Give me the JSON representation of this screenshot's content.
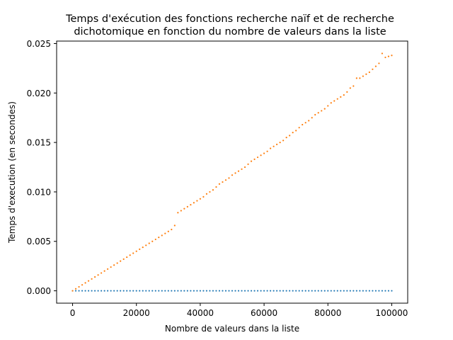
{
  "chart_data": {
    "type": "scatter",
    "title_line1": "Temps d'exécution des fonctions recherche naïf et de recherche",
    "title_line2": "dichotomique en fonction du nombre de valeurs dans la liste",
    "xlabel": "Nombre de valeurs dans la liste",
    "ylabel": "Temps d'execution (en secondes)",
    "xlim": [
      -5000,
      105000
    ],
    "ylim": [
      -0.00125,
      0.02525
    ],
    "x_ticks": [
      0,
      20000,
      40000,
      60000,
      80000,
      100000
    ],
    "x_tick_labels": [
      "0",
      "20000",
      "40000",
      "60000",
      "80000",
      "100000"
    ],
    "y_ticks": [
      0.0,
      0.005,
      0.01,
      0.015,
      0.02,
      0.025
    ],
    "y_tick_labels": [
      "0.000",
      "0.005",
      "0.010",
      "0.015",
      "0.020",
      "0.025"
    ],
    "grid": false,
    "legend": "none",
    "series": [
      {
        "color": "#1f77b4",
        "x": [
          0,
          1000,
          2000,
          3000,
          4000,
          5000,
          6000,
          7000,
          8000,
          9000,
          10000,
          11000,
          12000,
          13000,
          14000,
          15000,
          16000,
          17000,
          18000,
          19000,
          20000,
          21000,
          22000,
          23000,
          24000,
          25000,
          26000,
          27000,
          28000,
          29000,
          30000,
          31000,
          32000,
          33000,
          34000,
          35000,
          36000,
          37000,
          38000,
          39000,
          40000,
          41000,
          42000,
          43000,
          44000,
          45000,
          46000,
          47000,
          48000,
          49000,
          50000,
          51000,
          52000,
          53000,
          54000,
          55000,
          56000,
          57000,
          58000,
          59000,
          60000,
          61000,
          62000,
          63000,
          64000,
          65000,
          66000,
          67000,
          68000,
          69000,
          70000,
          71000,
          72000,
          73000,
          74000,
          75000,
          76000,
          77000,
          78000,
          79000,
          80000,
          81000,
          82000,
          83000,
          84000,
          85000,
          86000,
          87000,
          88000,
          89000,
          90000,
          91000,
          92000,
          93000,
          94000,
          95000,
          96000,
          97000,
          98000,
          99000,
          100000
        ],
        "y": [
          0.0,
          0.0,
          0.0,
          0.0,
          0.0,
          0.0,
          0.0,
          0.0,
          0.0,
          0.0,
          0.0,
          0.0,
          0.0,
          0.0,
          0.0,
          0.0,
          0.0,
          0.0,
          0.0,
          0.0,
          0.0,
          0.0,
          0.0,
          0.0,
          0.0,
          0.0,
          0.0,
          0.0,
          0.0,
          0.0,
          0.0,
          0.0,
          0.0,
          0.0,
          0.0,
          0.0,
          0.0,
          0.0,
          0.0,
          0.0,
          0.0,
          0.0,
          0.0,
          0.0,
          0.0,
          0.0,
          0.0,
          0.0,
          0.0,
          0.0,
          0.0,
          0.0,
          0.0,
          0.0,
          0.0,
          0.0,
          0.0,
          0.0,
          0.0,
          0.0,
          0.0,
          0.0,
          0.0,
          0.0,
          0.0,
          0.0,
          0.0,
          0.0,
          0.0,
          0.0,
          0.0,
          0.0,
          0.0,
          0.0,
          0.0,
          0.0,
          0.0,
          0.0,
          0.0,
          0.0,
          0.0,
          0.0,
          0.0,
          0.0,
          0.0,
          0.0,
          0.0,
          0.0,
          0.0,
          0.0,
          0.0,
          0.0,
          0.0,
          0.0,
          0.0,
          0.0,
          0.0,
          0.0,
          0.0,
          0.0,
          0.0
        ]
      },
      {
        "color": "#ff7f0e",
        "x": [
          0,
          1000,
          2000,
          3000,
          4000,
          5000,
          6000,
          7000,
          8000,
          9000,
          10000,
          11000,
          12000,
          13000,
          14000,
          15000,
          16000,
          17000,
          18000,
          19000,
          20000,
          21000,
          22000,
          23000,
          24000,
          25000,
          26000,
          27000,
          28000,
          29000,
          30000,
          31000,
          32000,
          33000,
          34000,
          35000,
          36000,
          37000,
          38000,
          39000,
          40000,
          41000,
          42000,
          43000,
          44000,
          45000,
          46000,
          47000,
          48000,
          49000,
          50000,
          51000,
          52000,
          53000,
          54000,
          55000,
          56000,
          57000,
          58000,
          59000,
          60000,
          61000,
          62000,
          63000,
          64000,
          65000,
          66000,
          67000,
          68000,
          69000,
          70000,
          71000,
          72000,
          73000,
          74000,
          75000,
          76000,
          77000,
          78000,
          79000,
          80000,
          81000,
          82000,
          83000,
          84000,
          85000,
          86000,
          87000,
          88000,
          89000,
          90000,
          91000,
          92000,
          93000,
          94000,
          95000,
          96000,
          97000,
          98000,
          99000,
          100000
        ],
        "y": [
          0.0,
          0.0002,
          0.0004,
          0.0006,
          0.0008,
          0.001,
          0.0012,
          0.0014,
          0.0016,
          0.0018,
          0.002,
          0.0022,
          0.0024,
          0.0026,
          0.0028,
          0.003,
          0.0032,
          0.0034,
          0.0036,
          0.0038,
          0.004,
          0.0042,
          0.0044,
          0.0046,
          0.0048,
          0.005,
          0.0052,
          0.0054,
          0.0056,
          0.0058,
          0.006,
          0.0062,
          0.0066,
          0.0079,
          0.0081,
          0.0083,
          0.0085,
          0.0087,
          0.0089,
          0.0091,
          0.0093,
          0.0095,
          0.0098,
          0.01,
          0.0102,
          0.0105,
          0.0108,
          0.011,
          0.0112,
          0.0114,
          0.0117,
          0.0119,
          0.0121,
          0.0123,
          0.0125,
          0.0128,
          0.0131,
          0.0133,
          0.0135,
          0.0137,
          0.0139,
          0.0141,
          0.0144,
          0.0146,
          0.0148,
          0.015,
          0.0152,
          0.0155,
          0.0157,
          0.016,
          0.0162,
          0.0165,
          0.0168,
          0.017,
          0.0172,
          0.0175,
          0.0178,
          0.018,
          0.0182,
          0.0184,
          0.0187,
          0.019,
          0.0192,
          0.0194,
          0.0196,
          0.0198,
          0.0201,
          0.0205,
          0.0207,
          0.0215,
          0.0215,
          0.0217,
          0.0219,
          0.0221,
          0.0224,
          0.0227,
          0.023,
          0.024,
          0.0236,
          0.0237,
          0.0238
        ]
      }
    ]
  }
}
